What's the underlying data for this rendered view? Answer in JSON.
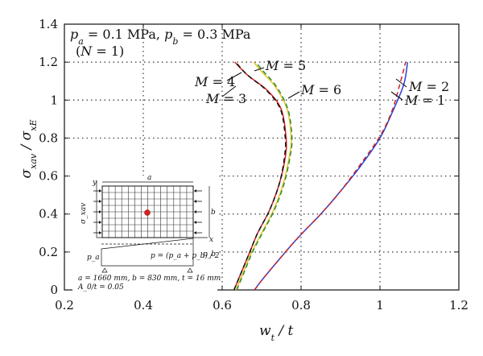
{
  "chart_data": {
    "type": "line",
    "xlabel": "w_t / t",
    "ylabel": "σ_xav / σ_xE",
    "xlim": [
      0.2,
      1.2
    ],
    "ylim": [
      0,
      1.4
    ],
    "x_ticks": [
      "0.2",
      "0.4",
      "0.6",
      "0.8",
      "1",
      "1.2"
    ],
    "y_ticks": [
      "0",
      "0.2",
      "0.4",
      "0.6",
      "0.8",
      "1",
      "1.2",
      "1.4"
    ],
    "grid": "dotted, major ticks",
    "annotation_lines": [
      "p_a = 0.1 MPa, p_b = 0.3 MPa",
      "(N = 1)"
    ],
    "series": [
      {
        "label": "M = 1",
        "color": "#2b3fd9",
        "dash": "solid",
        "points": [
          [
            0.682,
            0.0
          ],
          [
            0.7,
            0.05
          ],
          [
            0.74,
            0.15
          ],
          [
            0.79,
            0.27
          ],
          [
            0.85,
            0.4
          ],
          [
            0.9,
            0.52
          ],
          [
            0.95,
            0.65
          ],
          [
            1.0,
            0.8
          ],
          [
            1.03,
            0.93
          ],
          [
            1.06,
            1.08
          ],
          [
            1.07,
            1.2
          ]
        ]
      },
      {
        "label": "M = 2",
        "color": "#cc2222",
        "dash": "dashed",
        "points": [
          [
            0.682,
            0.0
          ],
          [
            0.7,
            0.05
          ],
          [
            0.74,
            0.15
          ],
          [
            0.79,
            0.27
          ],
          [
            0.85,
            0.4
          ],
          [
            0.9,
            0.52
          ],
          [
            0.95,
            0.66
          ],
          [
            1.0,
            0.81
          ],
          [
            1.03,
            0.94
          ],
          [
            1.05,
            1.08
          ],
          [
            1.065,
            1.2
          ]
        ]
      },
      {
        "label": "M = 3",
        "color": "#d41a1a",
        "dash": "solid",
        "points": [
          [
            0.63,
            0.0
          ],
          [
            0.65,
            0.1
          ],
          [
            0.67,
            0.2
          ],
          [
            0.69,
            0.3
          ],
          [
            0.72,
            0.42
          ],
          [
            0.745,
            0.56
          ],
          [
            0.76,
            0.7
          ],
          [
            0.762,
            0.8
          ],
          [
            0.75,
            0.95
          ],
          [
            0.715,
            1.05
          ],
          [
            0.665,
            1.13
          ],
          [
            0.632,
            1.2
          ]
        ]
      },
      {
        "label": "M = 4",
        "color": "#111111",
        "dash": "dashed",
        "points": [
          [
            0.63,
            0.0
          ],
          [
            0.65,
            0.1
          ],
          [
            0.67,
            0.2
          ],
          [
            0.69,
            0.3
          ],
          [
            0.72,
            0.42
          ],
          [
            0.745,
            0.56
          ],
          [
            0.758,
            0.7
          ],
          [
            0.76,
            0.8
          ],
          [
            0.748,
            0.95
          ],
          [
            0.713,
            1.05
          ],
          [
            0.665,
            1.13
          ],
          [
            0.634,
            1.2
          ]
        ]
      },
      {
        "label": "M = 5",
        "color": "#e0c42a",
        "dash": "solid",
        "points": [
          [
            0.635,
            0.0
          ],
          [
            0.655,
            0.1
          ],
          [
            0.675,
            0.2
          ],
          [
            0.7,
            0.3
          ],
          [
            0.73,
            0.42
          ],
          [
            0.755,
            0.56
          ],
          [
            0.77,
            0.7
          ],
          [
            0.775,
            0.8
          ],
          [
            0.765,
            0.95
          ],
          [
            0.735,
            1.07
          ],
          [
            0.7,
            1.15
          ],
          [
            0.68,
            1.2
          ]
        ]
      },
      {
        "label": "M = 6",
        "color": "#2f8f2f",
        "dash": "dashed",
        "points": [
          [
            0.637,
            0.0
          ],
          [
            0.657,
            0.1
          ],
          [
            0.677,
            0.2
          ],
          [
            0.702,
            0.3
          ],
          [
            0.732,
            0.42
          ],
          [
            0.757,
            0.56
          ],
          [
            0.772,
            0.7
          ],
          [
            0.777,
            0.8
          ],
          [
            0.767,
            0.95
          ],
          [
            0.738,
            1.07
          ],
          [
            0.705,
            1.15
          ],
          [
            0.685,
            1.2
          ]
        ]
      }
    ],
    "series_labels": [
      {
        "text": "M = 1"
      },
      {
        "text": "M = 2"
      },
      {
        "text": "M = 3"
      },
      {
        "text": "M = 4"
      },
      {
        "text": "M = 5"
      },
      {
        "text": "M = 6"
      }
    ],
    "inset": {
      "labels": {
        "a": "a",
        "b": "b",
        "x": "x",
        "y": "y",
        "sigma": "σ_xav",
        "pa": "p_a",
        "pb": "p_b"
      },
      "pressure_formula": "p = (p_a + p_b) / 2",
      "caption_line1": "a = 1660 mm, b = 830 mm, t = 16 mm",
      "caption_line2": "A_0/t = 0.05"
    }
  }
}
